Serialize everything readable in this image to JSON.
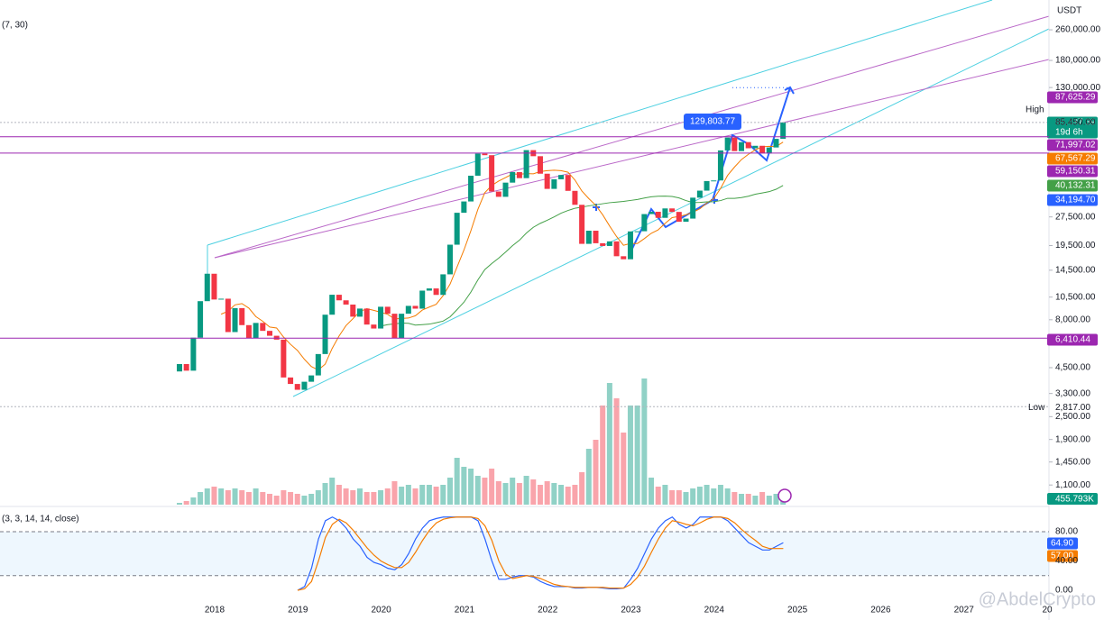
{
  "chart_data": {
    "type": "candlestick",
    "currency": "USDT",
    "ma_label": "(7, 30)",
    "ma_periods": [
      7,
      30
    ],
    "ma_colors": [
      "#f57c00",
      "#43a047"
    ],
    "log_scale": true,
    "ylim": [
      1000,
      380000
    ],
    "yticks": [
      {
        "value": 260000,
        "label": "260,000.00"
      },
      {
        "value": 180000,
        "label": "180,000.00"
      },
      {
        "value": 130000,
        "label": "130,000.00"
      },
      {
        "value": 85450,
        "label": "85,450.00"
      },
      {
        "value": 27500,
        "label": "27,500.00"
      },
      {
        "value": 19500,
        "label": "19,500.00"
      },
      {
        "value": 14500,
        "label": "14,500.00"
      },
      {
        "value": 10500,
        "label": "10,500.00"
      },
      {
        "value": 8000,
        "label": "8,000.00"
      },
      {
        "value": 4500,
        "label": "4,500.00"
      },
      {
        "value": 3300,
        "label": "3,300.00"
      },
      {
        "value": 2500,
        "label": "2,500.00"
      },
      {
        "value": 1900,
        "label": "1,900.00"
      },
      {
        "value": 1450,
        "label": "1,450.00"
      },
      {
        "value": 1100,
        "label": "1,100.00"
      }
    ],
    "years": [
      "2018",
      "2019",
      "2020",
      "2021",
      "2022",
      "2023",
      "2024",
      "2025",
      "2026",
      "2027",
      "20"
    ],
    "up_color": "#089981",
    "down_color": "#f23645",
    "first_open": 4300,
    "closes": [
      4700,
      4340,
      6450,
      10000,
      13900,
      10200,
      10300,
      6900,
      9200,
      7500,
      6400,
      7700,
      7000,
      6600,
      6300,
      4000,
      3700,
      3450,
      3800,
      4100,
      5300,
      8500,
      10800,
      10100,
      9600,
      8300,
      9150,
      7550,
      7200,
      9350,
      8600,
      6400,
      8600,
      9450,
      9140,
      11350,
      11650,
      10780,
      13800,
      19700,
      28900,
      33100,
      45100,
      58800,
      57700,
      37300,
      35000,
      41500,
      47100,
      43800,
      61300,
      57000,
      46200,
      38500,
      43200,
      45500,
      37600,
      31800,
      19900,
      23300,
      20050,
      19400,
      20500,
      17150,
      16540,
      23100,
      23150,
      28450,
      29250,
      27200,
      30450,
      29200,
      25950,
      26950,
      34650,
      37700,
      42300,
      42600,
      61100,
      71300,
      60600,
      67500,
      62700,
      64600,
      58950,
      63300,
      70200,
      85437.39
    ],
    "volume": {
      "vlim": [
        0,
        5320
      ],
      "values": [
        76,
        152,
        304,
        532,
        684,
        760,
        684,
        608,
        684,
        608,
        532,
        684,
        532,
        456,
        380,
        608,
        532,
        456,
        380,
        456,
        608,
        912,
        1140,
        836,
        684,
        608,
        684,
        532,
        532,
        608,
        684,
        988,
        760,
        836,
        684,
        836,
        836,
        760,
        836,
        1140,
        1976,
        1596,
        1520,
        1216,
        1140,
        1520,
        988,
        912,
        1140,
        912,
        1216,
        1064,
        836,
        988,
        912,
        836,
        760,
        836,
        1368,
        2356,
        2736,
        4180,
        5130,
        4484,
        3040,
        4180,
        4180,
        5320,
        1140,
        760,
        836,
        608,
        608,
        532,
        684,
        760,
        836,
        684,
        836,
        684,
        532,
        456,
        456,
        380,
        532,
        380,
        456,
        455.793
      ]
    },
    "tags": [
      {
        "value": 87625.29,
        "label": "87,625.29",
        "color": "#9c27b0",
        "side": "High",
        "line": false
      },
      {
        "value": 85437.39,
        "label": "85,437.39",
        "color": "#089981",
        "sub": "19d 6h",
        "line": true
      },
      {
        "value": 71997.02,
        "label": "71,997.02",
        "color": "#9c27b0",
        "line": true
      },
      {
        "value": 67567.29,
        "label": "67,567.29",
        "color": "#f57c00",
        "line": false
      },
      {
        "value": 59150.31,
        "label": "59,150.31",
        "color": "#9c27b0",
        "line": true
      },
      {
        "value": 40132.31,
        "label": "40,132.31",
        "color": "#43a047",
        "line": false
      },
      {
        "value": 34194.7,
        "label": "34,194.70",
        "color": "#2962ff",
        "line": false
      },
      {
        "value": 6410.44,
        "label": "6,410.44",
        "color": "#9c27b0",
        "line": true
      }
    ],
    "low": {
      "value": 2817,
      "label": "2,817.00",
      "side": "Low"
    },
    "last_volume": {
      "value": 455.793,
      "label": "455.793K",
      "color": "#089981"
    },
    "annotation": {
      "value": 129803.77,
      "label": "129,803.77"
    },
    "stoch": {
      "label": "(3, 3, 14, 14, close)",
      "ylim": [
        0,
        100
      ],
      "yticks": [
        {
          "value": 0,
          "label": "0.00"
        },
        {
          "value": 40,
          "label": "40.00"
        },
        {
          "value": 80,
          "label": "80.00"
        }
      ],
      "bands": [
        20,
        80
      ],
      "k_color": "#2962ff",
      "d_color": "#f57c00",
      "k": [
        0,
        5,
        30,
        70,
        95,
        100,
        95,
        85,
        70,
        60,
        45,
        38,
        35,
        30,
        28,
        35,
        50,
        70,
        85,
        95,
        98,
        100,
        100,
        100,
        100,
        100,
        95,
        70,
        40,
        15,
        15,
        18,
        20,
        20,
        18,
        12,
        8,
        5,
        5,
        5,
        3,
        3,
        4,
        4,
        3,
        2,
        2,
        3,
        15,
        30,
        50,
        70,
        85,
        95,
        100,
        90,
        85,
        90,
        100,
        100,
        100,
        100,
        95,
        85,
        75,
        65,
        60,
        55,
        55,
        60,
        64.9
      ],
      "d": [
        0,
        2,
        12,
        40,
        72,
        90,
        97,
        92,
        82,
        70,
        58,
        48,
        40,
        35,
        31,
        31,
        38,
        52,
        68,
        82,
        92,
        97,
        99,
        100,
        100,
        100,
        98,
        88,
        68,
        40,
        22,
        16,
        18,
        20,
        19,
        16,
        12,
        8,
        6,
        5,
        4,
        4,
        4,
        4,
        4,
        3,
        3,
        3,
        8,
        18,
        33,
        52,
        70,
        85,
        95,
        93,
        90,
        88,
        92,
        97,
        100,
        100,
        98,
        92,
        83,
        75,
        68,
        60,
        57,
        57,
        57
      ],
      "k_label": "64.90",
      "d_label": "57.00"
    },
    "watermark": "@AbdelCrypto"
  }
}
